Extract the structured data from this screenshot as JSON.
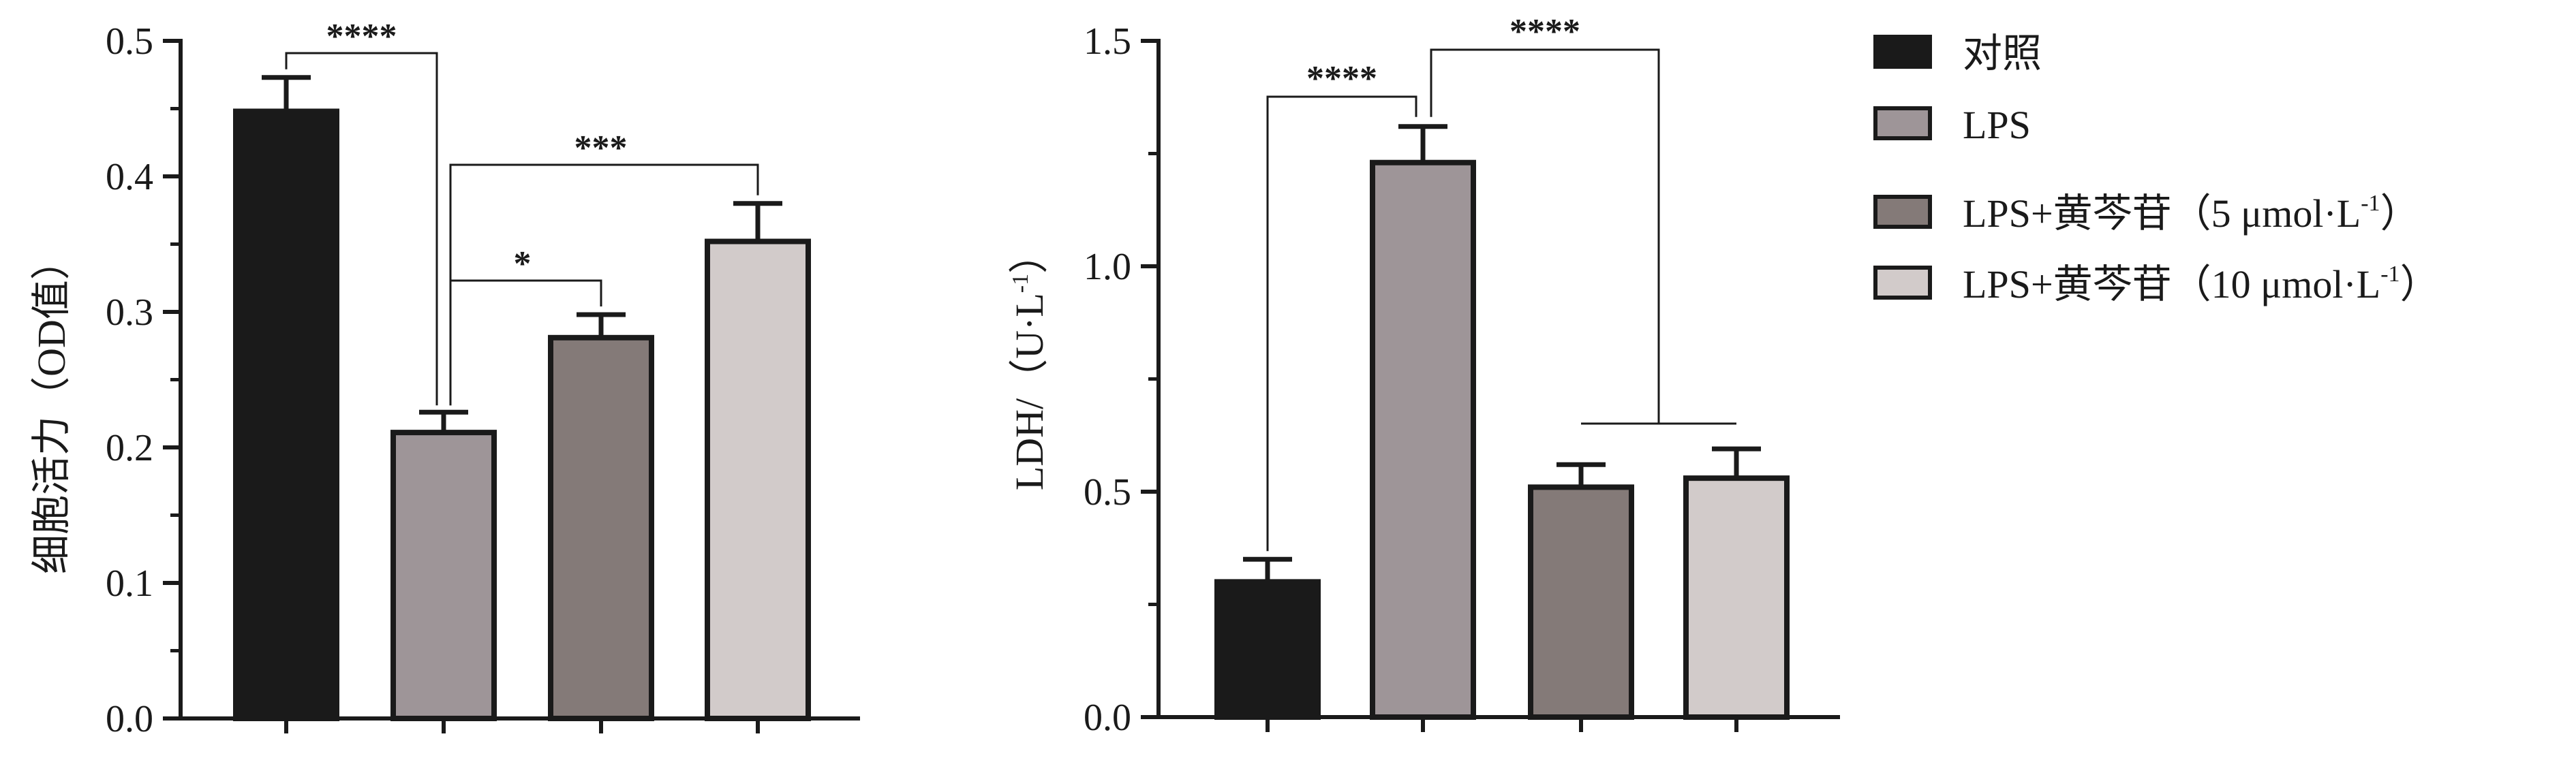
{
  "chart_data": [
    {
      "type": "bar",
      "ylabel": "细胞活力（OD值）",
      "ylim": [
        0,
        0.5
      ],
      "yticks": [
        "0.0",
        "0.1",
        "0.2",
        "0.3",
        "0.4",
        "0.5"
      ],
      "ytick_values": [
        0,
        0.1,
        0.2,
        0.3,
        0.4,
        0.5
      ],
      "categories": [
        "对照",
        "LPS",
        "LPS+黄芩苷（5 μmol·L-1）",
        "LPS+黄芩苷（10 μmol·L-1）"
      ],
      "values": [
        0.448,
        0.211,
        0.281,
        0.352
      ],
      "errors": [
        0.025,
        0.015,
        0.017,
        0.028
      ],
      "significance": [
        {
          "from": 0,
          "to": 1,
          "label": "****"
        },
        {
          "from": 1,
          "to": 3,
          "label": "***"
        },
        {
          "from": 1,
          "to": 2,
          "label": "*"
        }
      ]
    },
    {
      "type": "bar",
      "ylabel_main": "LDH/（U·L",
      "ylabel_sup": "-1",
      "ylabel_end": "）",
      "ylim": [
        0,
        1.5
      ],
      "yticks": [
        "0.0",
        "0.5",
        "1.0",
        "1.5"
      ],
      "ytick_values": [
        0,
        0.5,
        1.0,
        1.5
      ],
      "categories": [
        "对照",
        "LPS",
        "LPS+黄芩苷（5 μmol·L-1）",
        "LPS+黄芩苷（10 μmol·L-1）"
      ],
      "values": [
        0.3,
        1.23,
        0.51,
        0.53
      ],
      "errors": [
        0.05,
        0.08,
        0.05,
        0.065
      ],
      "significance": [
        {
          "from": 0,
          "to": 1,
          "label": "****"
        },
        {
          "from": 1,
          "to": [
            2,
            3
          ],
          "label": "****"
        }
      ]
    }
  ],
  "legend": [
    {
      "main": "对照",
      "sup": "",
      "end": "",
      "color": "#1a1a1a"
    },
    {
      "main": "LPS",
      "sup": "",
      "end": "",
      "color": "#9e9598"
    },
    {
      "main": "LPS+黄芩苷（5 μmol·L",
      "sup": "-1",
      "end": "）",
      "color": "#847a78"
    },
    {
      "main": "LPS+黄芩苷（10 μmol·L",
      "sup": "-1",
      "end": "）",
      "color": "#d2cbca"
    }
  ],
  "colors": [
    "#1a1a1a",
    "#9e9598",
    "#847a78",
    "#d2cbca"
  ]
}
